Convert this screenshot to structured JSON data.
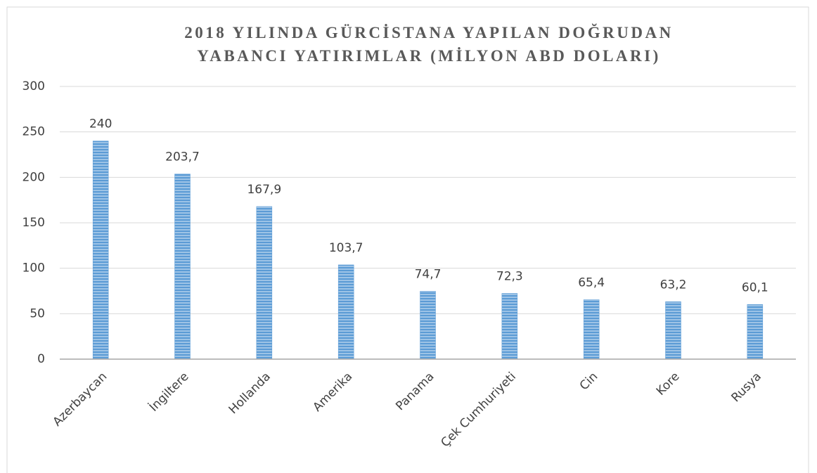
{
  "chart_data": {
    "type": "bar",
    "title": "2018 YILINDA GÜRCİSTANA YAPILAN DOĞRUDAN YABANCI YATIRIMLAR (MİLYON ABD DOLARI)",
    "categories": [
      "Azerbaycan",
      "İngiltere",
      "Hollanda",
      "Amerika",
      "Panama",
      "Çek Cumhuriyeti",
      "Cin",
      "Kore",
      "Rusya"
    ],
    "values": [
      240,
      203.7,
      167.9,
      103.7,
      74.7,
      72.3,
      65.4,
      63.2,
      60.1
    ],
    "value_labels": [
      "240",
      "203,7",
      "167,9",
      "103,7",
      "74,7",
      "72,3",
      "65,4",
      "63,2",
      "60,1"
    ],
    "color": "#5b9bd5",
    "ylim": [
      0,
      300
    ],
    "yticks": [
      0,
      50,
      100,
      150,
      200,
      250,
      300
    ],
    "grid": true
  }
}
